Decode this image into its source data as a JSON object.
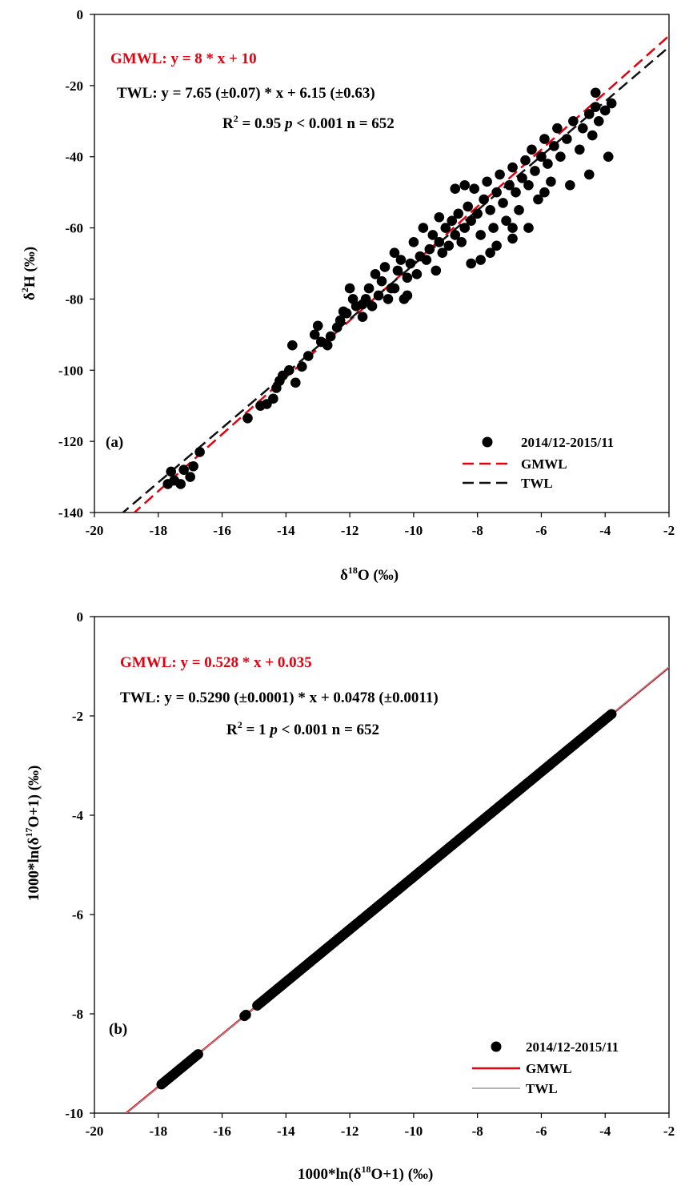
{
  "colors": {
    "gmwl": "#e3000f",
    "twl": "#111111",
    "points": "#000000"
  },
  "panels": {
    "a": {
      "label": "(a)",
      "eq_gmwl": "GMWL: y = 8 * x + 10",
      "eq_twl": "TWL: y = 7.65 (±0.07) * x + 6.15 (±0.63)",
      "stats": {
        "r": "R",
        "r_sup": "2",
        "r_val": " = 0.95 ",
        "p": "p",
        "p_val": " < 0.001 n = 652"
      },
      "legend": {
        "points": "2014/12-2015/11",
        "gmwl": "GMWL",
        "twl": "TWL"
      }
    },
    "b": {
      "label": "(b)",
      "eq_gmwl": "GMWL: y = 0.528 * x + 0.035",
      "eq_twl": "TWL: y = 0.5290 (±0.0001) * x + 0.0478 (±0.0011)",
      "stats": {
        "r": "R",
        "r_sup": "2",
        "r_val": " = 1 ",
        "p": "p",
        "p_val": " < 0.001 n = 652"
      },
      "legend": {
        "points": "2014/12-2015/11",
        "gmwl": "GMWL",
        "twl": "TWL"
      }
    }
  },
  "chart_data": [
    {
      "type": "scatter",
      "title": "",
      "xlabel": "δ18O (‰)",
      "ylabel": "δ2H (‰)",
      "xlim": [
        -20,
        -2
      ],
      "ylim": [
        -140,
        0
      ],
      "xticks": [
        "-20",
        "-18",
        "-16",
        "-14",
        "-12",
        "-10",
        "-8",
        "-6",
        "-4",
        "-2"
      ],
      "yticks": [
        "-140",
        "-120",
        "-100",
        "-80",
        "-60",
        "-40",
        "-20",
        "0"
      ],
      "lines": [
        {
          "name": "GMWL",
          "slope": 8,
          "intercept": 10,
          "style": "dashed",
          "color": "#e3000f"
        },
        {
          "name": "TWL",
          "slope": 7.65,
          "intercept": 6.15,
          "style": "dashed",
          "color": "#111111"
        }
      ],
      "series": [
        {
          "name": "2014/12-2015/11",
          "points": [
            [
              -17.7,
              -132
            ],
            [
              -17.6,
              -128.5
            ],
            [
              -17.5,
              -131
            ],
            [
              -17.3,
              -132
            ],
            [
              -17.2,
              -128
            ],
            [
              -17,
              -130
            ],
            [
              -16.9,
              -127
            ],
            [
              -16.7,
              -123
            ],
            [
              -15.2,
              -113.5
            ],
            [
              -14.8,
              -110
            ],
            [
              -14.6,
              -109.5
            ],
            [
              -14.4,
              -108
            ],
            [
              -14.3,
              -105
            ],
            [
              -14.2,
              -103
            ],
            [
              -14.1,
              -101.5
            ],
            [
              -13.9,
              -100
            ],
            [
              -13.8,
              -93
            ],
            [
              -13.7,
              -103.5
            ],
            [
              -13.5,
              -99
            ],
            [
              -13.3,
              -96
            ],
            [
              -13.1,
              -90
            ],
            [
              -13.0,
              -87.5
            ],
            [
              -12.9,
              -92
            ],
            [
              -12.7,
              -93
            ],
            [
              -12.6,
              -90.5
            ],
            [
              -12.4,
              -88
            ],
            [
              -12.3,
              -86
            ],
            [
              -12.1,
              -84
            ],
            [
              -12.0,
              -77
            ],
            [
              -11.9,
              -80
            ],
            [
              -11.8,
              -82
            ],
            [
              -11.6,
              -85
            ],
            [
              -11.5,
              -80
            ],
            [
              -11.4,
              -77
            ],
            [
              -11.3,
              -82
            ],
            [
              -11.2,
              -73
            ],
            [
              -11.1,
              -79
            ],
            [
              -11.0,
              -75
            ],
            [
              -10.9,
              -71
            ],
            [
              -10.8,
              -80
            ],
            [
              -10.7,
              -77
            ],
            [
              -10.6,
              -67
            ],
            [
              -10.5,
              -72
            ],
            [
              -10.4,
              -69
            ],
            [
              -10.3,
              -80
            ],
            [
              -10.2,
              -74
            ],
            [
              -10.1,
              -70
            ],
            [
              -10.0,
              -64
            ],
            [
              -9.9,
              -73
            ],
            [
              -9.8,
              -68
            ],
            [
              -9.7,
              -60
            ],
            [
              -9.6,
              -69
            ],
            [
              -9.5,
              -66
            ],
            [
              -9.4,
              -62
            ],
            [
              -9.3,
              -72
            ],
            [
              -9.2,
              -64
            ],
            [
              -9.1,
              -67
            ],
            [
              -9.0,
              -60
            ],
            [
              -8.9,
              -65
            ],
            [
              -8.8,
              -58
            ],
            [
              -8.7,
              -62
            ],
            [
              -8.6,
              -56
            ],
            [
              -8.5,
              -64
            ],
            [
              -8.4,
              -60
            ],
            [
              -8.3,
              -54
            ],
            [
              -8.2,
              -58
            ],
            [
              -8.1,
              -49
            ],
            [
              -8.0,
              -56
            ],
            [
              -7.9,
              -62
            ],
            [
              -7.8,
              -52
            ],
            [
              -7.7,
              -47
            ],
            [
              -7.6,
              -55
            ],
            [
              -7.5,
              -60
            ],
            [
              -7.4,
              -50
            ],
            [
              -7.3,
              -45
            ],
            [
              -7.2,
              -53
            ],
            [
              -7.1,
              -58
            ],
            [
              -7.0,
              -48
            ],
            [
              -6.9,
              -43
            ],
            [
              -6.8,
              -50
            ],
            [
              -6.7,
              -55
            ],
            [
              -6.6,
              -46
            ],
            [
              -6.5,
              -41
            ],
            [
              -6.4,
              -48
            ],
            [
              -6.3,
              -38
            ],
            [
              -6.2,
              -44
            ],
            [
              -6.1,
              -52
            ],
            [
              -6.0,
              -40
            ],
            [
              -5.9,
              -35
            ],
            [
              -5.8,
              -42
            ],
            [
              -5.7,
              -47
            ],
            [
              -5.6,
              -37
            ],
            [
              -5.5,
              -32
            ],
            [
              -5.4,
              -40
            ],
            [
              -5.2,
              -35
            ],
            [
              -5.0,
              -30
            ],
            [
              -4.8,
              -38
            ],
            [
              -4.7,
              -32
            ],
            [
              -4.5,
              -28
            ],
            [
              -4.4,
              -34
            ],
            [
              -4.3,
              -26
            ],
            [
              -4.2,
              -30
            ],
            [
              -4.0,
              -27
            ],
            [
              -3.9,
              -40
            ],
            [
              -3.8,
              -25
            ],
            [
              -4.3,
              -22
            ],
            [
              -8.2,
              -70
            ],
            [
              -7.9,
              -69
            ],
            [
              -7.6,
              -67
            ],
            [
              -7.4,
              -65
            ],
            [
              -6.9,
              -63
            ],
            [
              -6.4,
              -60
            ],
            [
              -8.7,
              -49
            ],
            [
              -8.4,
              -48
            ],
            [
              -6.9,
              -60
            ],
            [
              -5.1,
              -48
            ],
            [
              -4.5,
              -45
            ],
            [
              -5.9,
              -50
            ],
            [
              -9.2,
              -57
            ],
            [
              -11.6,
              -81.5
            ],
            [
              -12.2,
              -83.5
            ],
            [
              -10.6,
              -77
            ],
            [
              -10.2,
              -79
            ]
          ]
        }
      ]
    },
    {
      "type": "scatter",
      "title": "",
      "xlabel": "1000*ln(δ18O+1) (‰)",
      "ylabel": "1000*ln(δ17O+1) (‰)",
      "xlim": [
        -20,
        -2
      ],
      "ylim": [
        -10,
        0
      ],
      "xticks": [
        "-20",
        "-18",
        "-16",
        "-14",
        "-12",
        "-10",
        "-8",
        "-6",
        "-4",
        "-2"
      ],
      "yticks": [
        "-10",
        "-8",
        "-6",
        "-4",
        "-2",
        "0"
      ],
      "lines": [
        {
          "name": "GMWL",
          "slope": 0.528,
          "intercept": 0.035,
          "style": "solid",
          "color": "#e3000f"
        },
        {
          "name": "TWL",
          "slope": 0.529,
          "intercept": 0.0478,
          "style": "solid",
          "color": "#999999"
        }
      ],
      "series": [
        {
          "name": "2014/12-2015/11",
          "x_range": [
            -17.9,
            -3.8
          ],
          "x_gaps": [
            [
              -16.7,
              -15.3
            ],
            [
              -15.2,
              -14.9
            ]
          ]
        }
      ]
    }
  ]
}
